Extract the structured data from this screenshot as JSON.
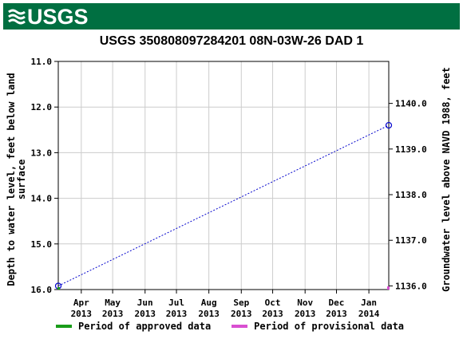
{
  "header": {
    "logo_text": "USGS",
    "logo_icon": "usgs-wave-icon",
    "brand_color": "#006f41"
  },
  "chart_data": {
    "type": "line",
    "title": "USGS 350808097284201 08N-03W-26 DAD 1",
    "ylabel_left": [
      "Depth to water level, feet below land",
      "surface"
    ],
    "ylabel_right": "Groundwater level above NAVD 1988, feet",
    "ylim_left": [
      16.0,
      11.0
    ],
    "ylim_right_ticks": [
      "1136.0",
      "1137.0",
      "1138.0",
      "1139.0",
      "1140.0"
    ],
    "y_ticks_left": [
      "11.0",
      "12.0",
      "13.0",
      "14.0",
      "15.0",
      "16.0"
    ],
    "x_ticks": [
      {
        "month": "Apr",
        "year": "2013"
      },
      {
        "month": "May",
        "year": "2013"
      },
      {
        "month": "Jun",
        "year": "2013"
      },
      {
        "month": "Jul",
        "year": "2013"
      },
      {
        "month": "Aug",
        "year": "2013"
      },
      {
        "month": "Sep",
        "year": "2013"
      },
      {
        "month": "Oct",
        "year": "2013"
      },
      {
        "month": "Nov",
        "year": "2013"
      },
      {
        "month": "Dec",
        "year": "2013"
      },
      {
        "month": "Jan",
        "year": "2014"
      }
    ],
    "grid": true,
    "series": [
      {
        "points": [
          {
            "date": "2013-03-10",
            "depth": 15.92
          },
          {
            "date": "2014-01-20",
            "depth": 12.4
          }
        ],
        "color": "#0000cc"
      }
    ],
    "legend": [
      {
        "label": "Period of approved data",
        "color": "#1a9c1a"
      },
      {
        "label": "Period of provisional data",
        "color": "#d94fd1"
      }
    ]
  }
}
